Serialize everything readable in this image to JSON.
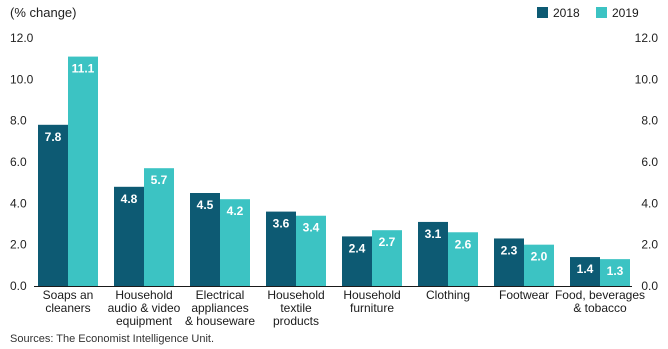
{
  "chart_data": {
    "type": "bar",
    "unit_label": "(% change)",
    "categories": [
      [
        "Soaps an",
        "cleaners"
      ],
      [
        "Household",
        "audio & video",
        "equipment"
      ],
      [
        "Electrical",
        "appliances",
        "& houseware"
      ],
      [
        "Household",
        "textile",
        "products"
      ],
      [
        "Household",
        "furniture"
      ],
      [
        "Clothing"
      ],
      [
        "Footwear"
      ],
      [
        "Food, beverages",
        "& tobacco"
      ]
    ],
    "series": [
      {
        "name": "2018",
        "color": "#0d5a73",
        "values": [
          7.8,
          4.8,
          4.5,
          3.6,
          2.4,
          3.1,
          2.3,
          1.4
        ],
        "labels": [
          "7.8",
          "4.8",
          "4.5",
          "3.6",
          "2.4",
          "3.1",
          "2.3",
          "1.4"
        ]
      },
      {
        "name": "2019",
        "color": "#3cc3c3",
        "values": [
          11.1,
          5.7,
          4.2,
          3.4,
          2.7,
          2.6,
          2.0,
          1.3
        ],
        "labels": [
          "11.1",
          "5.7",
          "4.2",
          "3.4",
          "2.7",
          "2.6",
          "2.0",
          "1.3"
        ]
      }
    ],
    "ylim": [
      0,
      12
    ],
    "yticks": [
      "0.0",
      "2.0",
      "4.0",
      "6.0",
      "8.0",
      "10.0",
      "12.0"
    ],
    "ytick_values": [
      0,
      2,
      4,
      6,
      8,
      10,
      12
    ],
    "grid": false,
    "legend_position": "top-right",
    "source": "Sources: The Economist Intelligence Unit."
  }
}
